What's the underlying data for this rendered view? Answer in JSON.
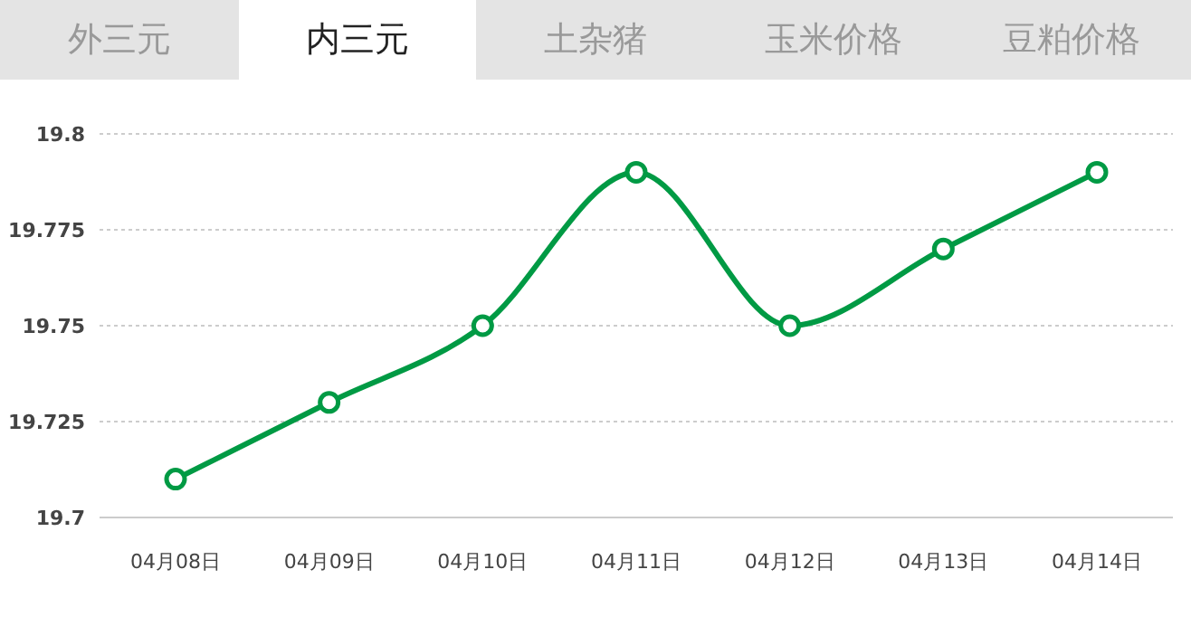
{
  "chart_data": {
    "type": "line",
    "annotations": [
      "外三元",
      "内三元",
      "土杂猪",
      "玉米价格",
      "豆粕价格"
    ],
    "categories": [
      "04月08日",
      "04月09日",
      "04月10日",
      "04月11日",
      "04月12日",
      "04月13日",
      "04月14日"
    ],
    "series": [
      {
        "color": "#009a44",
        "values": [
          19.71,
          19.73,
          19.75,
          19.79,
          19.75,
          19.77,
          19.79
        ]
      }
    ],
    "ylim": [
      19.7,
      19.8
    ],
    "yticks": [
      19.7,
      19.725,
      19.75,
      19.775,
      19.8
    ],
    "grid": "y",
    "marker": "circle",
    "line_style": "solid",
    "legend": false
  }
}
